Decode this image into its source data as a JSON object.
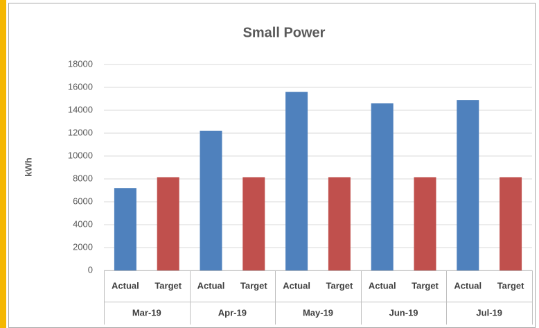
{
  "chart_data": {
    "type": "bar",
    "title": "Small Power",
    "y_label": "kWh",
    "categories": [
      "Mar-19",
      "Apr-19",
      "May-19",
      "Jun-19",
      "Jul-19"
    ],
    "series": [
      {
        "name": "Actual",
        "color": "#4f81bd",
        "values": [
          7200,
          12200,
          15600,
          14600,
          14900
        ]
      },
      {
        "name": "Target",
        "color": "#c0504d",
        "values": [
          8150,
          8150,
          8150,
          8150,
          8150
        ]
      }
    ],
    "ylim": [
      0,
      18000
    ],
    "yticks": [
      0,
      2000,
      4000,
      6000,
      8000,
      10000,
      12000,
      14000,
      16000,
      18000
    ],
    "grid": true
  }
}
